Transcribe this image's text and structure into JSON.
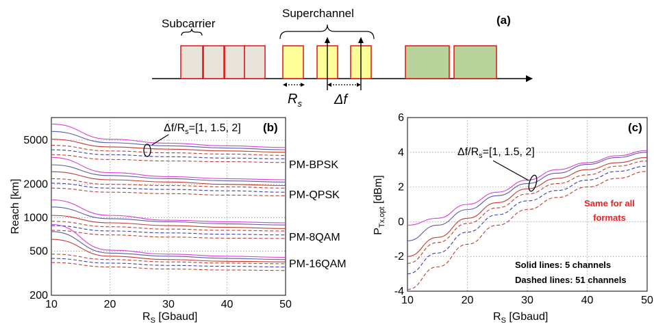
{
  "colors": {
    "pink_solid": "#d93cd9",
    "blue_solid": "#5a5aa8",
    "red_solid": "#c0392b",
    "blue_dashed": "#3a3ab8",
    "red_dashed": "#c0392b",
    "subcarrier_fill": "#e8e4dc",
    "super_fill": "#ffff99",
    "green_fill": "#b8d49a",
    "box_stroke": "#e01010",
    "annotation_red": "#e82020"
  },
  "panel_a": {
    "tag": "(a)",
    "subcarrier_label": "Subcarrier",
    "superchannel_label": "Superchannel",
    "rs_label": "R",
    "rs_sub": "s",
    "df_label": "Δf"
  },
  "panel_b": {
    "tag": "(b)",
    "annotation": "Δf/R",
    "annotation_sub": "s",
    "annotation_rest": "=[1, 1.5, 2]",
    "format_labels": [
      "PM-BPSK",
      "PM-QPSK",
      "PM-8QAM",
      "PM-16QAM"
    ]
  },
  "panel_c": {
    "tag": "(c)",
    "annotation": "Δf/R",
    "annotation_sub": "s",
    "annotation_rest": "=[1, 1.5, 2]",
    "same_note_line1": "Same for all",
    "same_note_line2": "formats",
    "legend_solid": "Solid lines: 5 channels",
    "legend_dashed": "Dashed lines: 51 channels"
  },
  "chart_data": [
    {
      "type": "line",
      "panel": "b",
      "xlabel": "R_S  [Gbaud]",
      "ylabel": "Reach  [km]",
      "xlim": [
        10,
        50
      ],
      "ylim": [
        200,
        8000
      ],
      "yscale": "log",
      "grid": true,
      "x_ticks": [
        10,
        20,
        30,
        40,
        50
      ],
      "y_ticks": [
        200,
        500,
        1000,
        2000,
        5000
      ],
      "x": [
        10,
        20,
        30,
        40,
        50
      ],
      "series": [
        {
          "format": "PM-BPSK",
          "channels": 5,
          "df_ratio": 2,
          "values": [
            7000,
            5100,
            4700,
            4450,
            4300
          ]
        },
        {
          "format": "PM-BPSK",
          "channels": 5,
          "df_ratio": 1.5,
          "values": [
            6000,
            4750,
            4450,
            4250,
            4100
          ]
        },
        {
          "format": "PM-BPSK",
          "channels": 5,
          "df_ratio": 1,
          "values": [
            5100,
            4350,
            4150,
            4000,
            3900
          ]
        },
        {
          "format": "PM-BPSK",
          "channels": 51,
          "df_ratio": 2,
          "values": [
            4500,
            4000,
            3850,
            3750,
            3650
          ]
        },
        {
          "format": "PM-BPSK",
          "channels": 51,
          "df_ratio": 1.5,
          "values": [
            4100,
            3700,
            3550,
            3450,
            3400
          ]
        },
        {
          "format": "PM-BPSK",
          "channels": 51,
          "df_ratio": 1,
          "values": [
            3700,
            3350,
            3250,
            3200,
            3150
          ]
        },
        {
          "format": "PM-QPSK",
          "channels": 5,
          "df_ratio": 2,
          "values": [
            3500,
            2550,
            2350,
            2250,
            2200
          ]
        },
        {
          "format": "PM-QPSK",
          "channels": 5,
          "df_ratio": 1.5,
          "values": [
            3000,
            2400,
            2250,
            2150,
            2100
          ]
        },
        {
          "format": "PM-QPSK",
          "channels": 5,
          "df_ratio": 1,
          "values": [
            2600,
            2200,
            2100,
            2000,
            1950
          ]
        },
        {
          "format": "PM-QPSK",
          "channels": 51,
          "df_ratio": 2,
          "values": [
            2250,
            2000,
            1950,
            1900,
            1850
          ]
        },
        {
          "format": "PM-QPSK",
          "channels": 51,
          "df_ratio": 1.5,
          "values": [
            2050,
            1850,
            1800,
            1750,
            1700
          ]
        },
        {
          "format": "PM-QPSK",
          "channels": 51,
          "df_ratio": 1,
          "values": [
            1850,
            1700,
            1650,
            1600,
            1580
          ]
        },
        {
          "format": "PM-8QAM",
          "channels": 5,
          "df_ratio": 2,
          "values": [
            1450,
            1050,
            950,
            920,
            900
          ]
        },
        {
          "format": "PM-8QAM",
          "channels": 5,
          "df_ratio": 1.5,
          "values": [
            1250,
            980,
            920,
            880,
            860
          ]
        },
        {
          "format": "PM-8QAM",
          "channels": 5,
          "df_ratio": 1,
          "values": [
            1050,
            900,
            850,
            820,
            800
          ]
        },
        {
          "format": "PM-8QAM",
          "channels": 51,
          "df_ratio": 2,
          "values": [
            930,
            830,
            790,
            770,
            760
          ]
        },
        {
          "format": "PM-8QAM",
          "channels": 51,
          "df_ratio": 1.5,
          "values": [
            850,
            760,
            730,
            710,
            700
          ]
        },
        {
          "format": "PM-8QAM",
          "channels": 51,
          "df_ratio": 1,
          "values": [
            770,
            700,
            670,
            655,
            650
          ]
        },
        {
          "format": "PM-16QAM",
          "channels": 5,
          "df_ratio": 2,
          "values": [
            870,
            510,
            470,
            450,
            440
          ]
        },
        {
          "format": "PM-16QAM",
          "channels": 5,
          "df_ratio": 1.5,
          "values": [
            750,
            480,
            450,
            430,
            420
          ]
        },
        {
          "format": "PM-16QAM",
          "channels": 5,
          "df_ratio": 1,
          "values": [
            640,
            450,
            420,
            405,
            400
          ]
        },
        {
          "format": "PM-16QAM",
          "channels": 51,
          "df_ratio": 2,
          "values": [
            470,
            420,
            400,
            390,
            385
          ]
        },
        {
          "format": "PM-16QAM",
          "channels": 51,
          "df_ratio": 1.5,
          "values": [
            430,
            390,
            372,
            365,
            360
          ]
        },
        {
          "format": "PM-16QAM",
          "channels": 51,
          "df_ratio": 1,
          "values": [
            395,
            360,
            345,
            338,
            335
          ]
        }
      ]
    },
    {
      "type": "line",
      "panel": "c",
      "xlabel": "R_S  [Gbaud]",
      "ylabel": "P_Tx,opt [dBm]",
      "xlim": [
        10,
        50
      ],
      "ylim": [
        -4,
        6
      ],
      "grid": true,
      "x_ticks": [
        10,
        20,
        30,
        40,
        50
      ],
      "y_ticks": [
        -4,
        -2,
        0,
        2,
        4,
        6
      ],
      "x": [
        10,
        15,
        20,
        25,
        30,
        35,
        40,
        45,
        50
      ],
      "series": [
        {
          "channels": 5,
          "df_ratio": 2,
          "values": [
            -0.2,
            0.2,
            1.0,
            1.7,
            2.4,
            3.0,
            3.4,
            3.8,
            4.1
          ]
        },
        {
          "channels": 5,
          "df_ratio": 1.5,
          "values": [
            -1.1,
            -0.2,
            0.7,
            1.5,
            2.2,
            2.8,
            3.3,
            3.7,
            4.0
          ]
        },
        {
          "channels": 5,
          "df_ratio": 1,
          "values": [
            -2.0,
            -0.9,
            0.2,
            1.1,
            1.9,
            2.5,
            3.0,
            3.4,
            3.7
          ]
        },
        {
          "channels": 51,
          "df_ratio": 2,
          "values": [
            -2.4,
            -1.2,
            -0.1,
            0.8,
            1.6,
            2.2,
            2.7,
            3.2,
            3.5
          ]
        },
        {
          "channels": 51,
          "df_ratio": 1.5,
          "values": [
            -3.0,
            -1.8,
            -0.6,
            0.4,
            1.2,
            1.8,
            2.4,
            2.9,
            3.2
          ]
        },
        {
          "channels": 51,
          "df_ratio": 1,
          "values": [
            -3.9,
            -2.6,
            -1.3,
            -0.2,
            0.7,
            1.4,
            2.0,
            2.5,
            2.9
          ]
        }
      ]
    }
  ]
}
